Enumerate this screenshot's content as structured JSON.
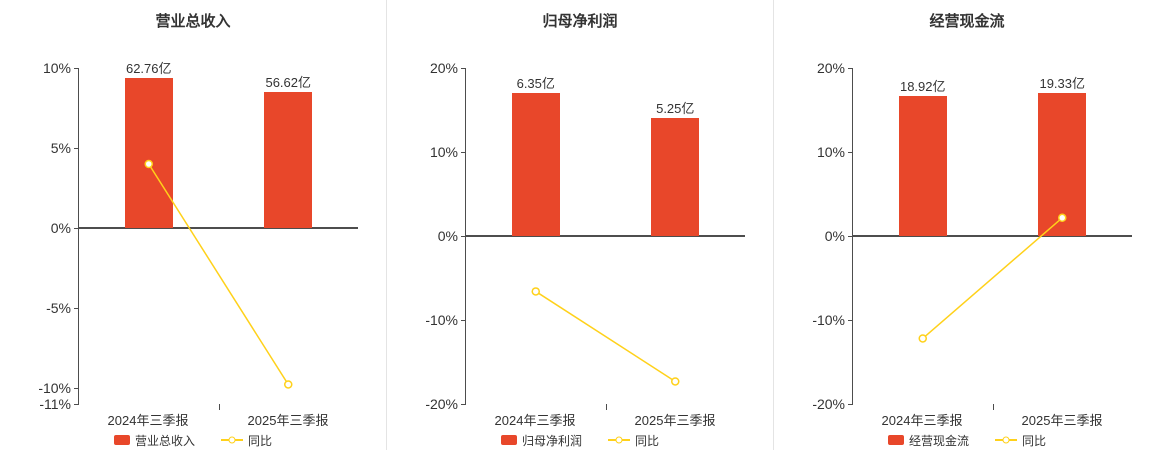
{
  "colors": {
    "bar": "#e8472a",
    "line": "#ffd11a",
    "axis": "#4d4d4d",
    "divider": "#e4e4e4",
    "text": "#333333",
    "background": "#ffffff"
  },
  "chart_data": [
    {
      "type": "bar",
      "title": "营业总收入",
      "categories": [
        "2024年三季报",
        "2025年三季报"
      ],
      "series": [
        {
          "type": "bar",
          "name": "营业总收入",
          "unit": "亿",
          "values": [
            62.76,
            56.62
          ],
          "value_labels": [
            "62.76亿",
            "56.62亿"
          ],
          "bar_axis_heights": [
            9.4,
            8.48
          ]
        },
        {
          "type": "line",
          "name": "同比",
          "values_pct": [
            4.0,
            -9.78
          ]
        }
      ],
      "ylim": [
        -11,
        10
      ],
      "yticks": [
        {
          "value": 10,
          "label": "10%"
        },
        {
          "value": 5,
          "label": "5%"
        },
        {
          "value": 0,
          "label": "0%"
        },
        {
          "value": -5,
          "label": "-5%"
        },
        {
          "value": -10,
          "label": "-10%"
        },
        {
          "value": -11,
          "label": "-11%"
        }
      ],
      "grid": false,
      "legend_position": "bottom"
    },
    {
      "type": "bar",
      "title": "归母净利润",
      "categories": [
        "2024年三季报",
        "2025年三季报"
      ],
      "series": [
        {
          "type": "bar",
          "name": "归母净利润",
          "unit": "亿",
          "values": [
            6.35,
            5.25
          ],
          "value_labels": [
            "6.35亿",
            "5.25亿"
          ],
          "bar_axis_heights": [
            17.0,
            14.06
          ]
        },
        {
          "type": "line",
          "name": "同比",
          "values_pct": [
            -6.6,
            -17.32
          ]
        }
      ],
      "ylim": [
        -20,
        20
      ],
      "yticks": [
        {
          "value": 20,
          "label": "20%"
        },
        {
          "value": 10,
          "label": "10%"
        },
        {
          "value": 0,
          "label": "0%"
        },
        {
          "value": -10,
          "label": "-10%"
        },
        {
          "value": -20,
          "label": "-20%"
        }
      ],
      "grid": false,
      "legend_position": "bottom"
    },
    {
      "type": "bar",
      "title": "经营现金流",
      "categories": [
        "2024年三季报",
        "2025年三季报"
      ],
      "series": [
        {
          "type": "bar",
          "name": "经营现金流",
          "unit": "亿",
          "values": [
            18.92,
            19.33
          ],
          "value_labels": [
            "18.92亿",
            "19.33亿"
          ],
          "bar_axis_heights": [
            16.64,
            17.0
          ]
        },
        {
          "type": "line",
          "name": "同比",
          "values_pct": [
            -12.2,
            2.17
          ]
        }
      ],
      "ylim": [
        -20,
        20
      ],
      "yticks": [
        {
          "value": 20,
          "label": "20%"
        },
        {
          "value": 10,
          "label": "10%"
        },
        {
          "value": 0,
          "label": "0%"
        },
        {
          "value": -10,
          "label": "-10%"
        },
        {
          "value": -20,
          "label": "-20%"
        }
      ],
      "grid": false,
      "legend_position": "bottom"
    }
  ]
}
